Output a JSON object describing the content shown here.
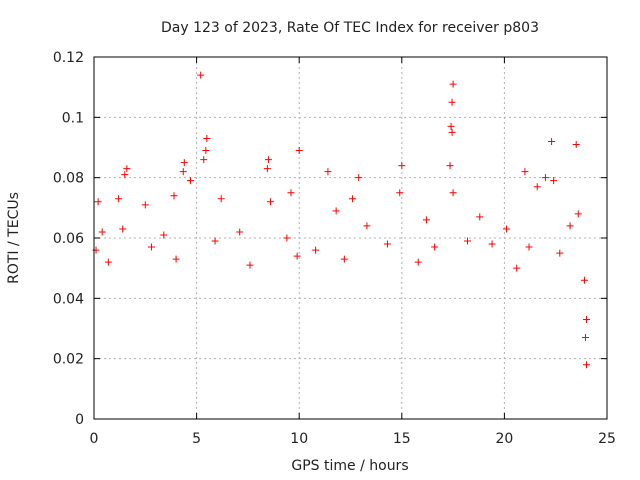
{
  "chart_data": {
    "type": "scatter",
    "title": "Day 123 of 2023, Rate Of TEC Index for receiver p803",
    "xlabel": "GPS time / hours",
    "ylabel": "ROTI / TECUs",
    "xlim": [
      0,
      25
    ],
    "ylim": [
      0,
      0.12
    ],
    "x_ticks": [
      "0",
      "5",
      "10",
      "15",
      "20",
      "25"
    ],
    "y_ticks": [
      "0",
      "0.02",
      "0.04",
      "0.06",
      "0.08",
      "0.1",
      "0.12"
    ],
    "grid": true,
    "marker": "+",
    "series": [
      {
        "color": "#ff0000",
        "points": [
          [
            5.2,
            0.114
          ],
          [
            17.5,
            0.111
          ],
          [
            17.45,
            0.105
          ],
          [
            17.4,
            0.097
          ],
          [
            17.45,
            0.095
          ],
          [
            5.5,
            0.093
          ],
          [
            5.45,
            0.089
          ],
          [
            5.35,
            0.086
          ],
          [
            10.0,
            0.089
          ],
          [
            23.5,
            0.091
          ],
          [
            22.3,
            0.092
          ],
          [
            4.4,
            0.085
          ],
          [
            4.35,
            0.082
          ],
          [
            8.5,
            0.086
          ],
          [
            8.45,
            0.083
          ],
          [
            1.6,
            0.083
          ],
          [
            1.5,
            0.081
          ],
          [
            11.4,
            0.082
          ],
          [
            21.0,
            0.082
          ],
          [
            17.35,
            0.084
          ],
          [
            15.0,
            0.084
          ],
          [
            4.7,
            0.079
          ],
          [
            12.9,
            0.08
          ],
          [
            21.6,
            0.077
          ],
          [
            22.4,
            0.079
          ],
          [
            22.0,
            0.08
          ],
          [
            0.2,
            0.072
          ],
          [
            1.2,
            0.073
          ],
          [
            2.5,
            0.071
          ],
          [
            3.9,
            0.074
          ],
          [
            6.2,
            0.073
          ],
          [
            8.6,
            0.072
          ],
          [
            9.6,
            0.075
          ],
          [
            12.6,
            0.073
          ],
          [
            14.9,
            0.075
          ],
          [
            17.5,
            0.075
          ],
          [
            16.2,
            0.066
          ],
          [
            18.8,
            0.067
          ],
          [
            20.1,
            0.063
          ],
          [
            23.6,
            0.068
          ],
          [
            23.2,
            0.064
          ],
          [
            0.4,
            0.062
          ],
          [
            1.4,
            0.063
          ],
          [
            3.4,
            0.061
          ],
          [
            7.1,
            0.062
          ],
          [
            9.4,
            0.06
          ],
          [
            11.8,
            0.069
          ],
          [
            13.3,
            0.064
          ],
          [
            19.4,
            0.058
          ],
          [
            21.2,
            0.057
          ],
          [
            0.1,
            0.056
          ],
          [
            2.8,
            0.057
          ],
          [
            5.9,
            0.059
          ],
          [
            10.8,
            0.056
          ],
          [
            14.3,
            0.058
          ],
          [
            16.6,
            0.057
          ],
          [
            18.2,
            0.059
          ],
          [
            22.7,
            0.055
          ],
          [
            0.7,
            0.052
          ],
          [
            4.0,
            0.053
          ],
          [
            7.6,
            0.051
          ],
          [
            9.9,
            0.054
          ],
          [
            12.2,
            0.053
          ],
          [
            15.8,
            0.052
          ],
          [
            20.6,
            0.05
          ],
          [
            23.9,
            0.046
          ],
          [
            24.0,
            0.033
          ],
          [
            24.0,
            0.018
          ],
          [
            23.95,
            0.027
          ]
        ]
      }
    ]
  }
}
